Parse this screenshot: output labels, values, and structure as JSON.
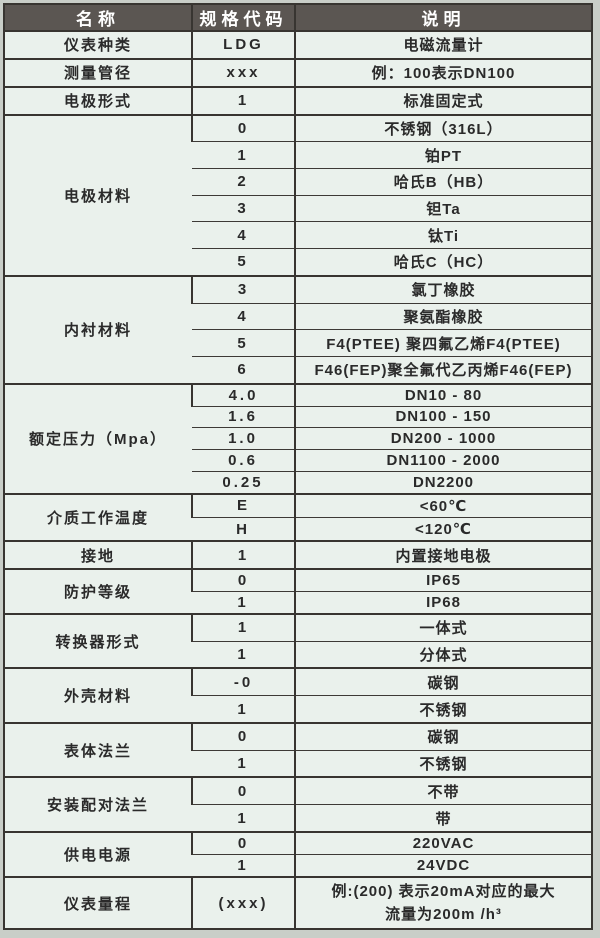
{
  "colors": {
    "page_background": "#c9cec8",
    "table_background": "#eaf1ec",
    "header_background": "#5b5652",
    "header_text": "#ffffff",
    "body_text": "#2a2a2a",
    "border": "#383531"
  },
  "table": {
    "headers": [
      "名称",
      "规格代码",
      "说明"
    ],
    "groups": [
      {
        "name": "仪表种类",
        "rows": [
          {
            "code": "LDG",
            "desc": "电磁流量计"
          }
        ]
      },
      {
        "name": "测量管径",
        "rows": [
          {
            "code": "xxx",
            "desc": "例：100表示DN100"
          }
        ]
      },
      {
        "name": "电极形式",
        "rows": [
          {
            "code": "1",
            "desc": "标准固定式"
          }
        ]
      },
      {
        "name": "电极材料",
        "rows": [
          {
            "code": "0",
            "desc": "不锈钢（316L）"
          },
          {
            "code": "1",
            "desc": "铂PT"
          },
          {
            "code": "2",
            "desc": "哈氏B（HB）"
          },
          {
            "code": "3",
            "desc": "钽Ta"
          },
          {
            "code": "4",
            "desc": "钛Ti"
          },
          {
            "code": "5",
            "desc": "哈氏C（HC）"
          }
        ]
      },
      {
        "name": "内衬材料",
        "rows": [
          {
            "code": "3",
            "desc": "氯丁橡胶"
          },
          {
            "code": "4",
            "desc": "聚氨酯橡胶"
          },
          {
            "code": "5",
            "desc": "F4(PTEE) 聚四氟乙烯F4(PTEE)"
          },
          {
            "code": "6",
            "desc": "F46(FEP)聚全氟代乙丙烯F46(FEP)"
          }
        ]
      },
      {
        "name": "额定压力（Mpa）",
        "rows": [
          {
            "code": "4.0",
            "desc": "DN10 - 80"
          },
          {
            "code": "1.6",
            "desc": "DN100 - 150"
          },
          {
            "code": "1.0",
            "desc": "DN200 - 1000"
          },
          {
            "code": "0.6",
            "desc": "DN1100 - 2000"
          },
          {
            "code": "0.25",
            "desc": "DN2200"
          }
        ]
      },
      {
        "name": "介质工作温度",
        "rows": [
          {
            "code": "E",
            "desc": "<60℃"
          },
          {
            "code": "H",
            "desc": "<120℃"
          }
        ]
      },
      {
        "name": "接地",
        "rows": [
          {
            "code": "1",
            "desc": "内置接地电极"
          }
        ]
      },
      {
        "name": "防护等级",
        "rows": [
          {
            "code": "0",
            "desc": "IP65"
          },
          {
            "code": "1",
            "desc": "IP68"
          }
        ]
      },
      {
        "name": "转换器形式",
        "rows": [
          {
            "code": "1",
            "desc": "一体式"
          },
          {
            "code": "1",
            "desc": "分体式"
          }
        ]
      },
      {
        "name": "外壳材料",
        "rows": [
          {
            "code": "-0",
            "desc": "碳钢"
          },
          {
            "code": "1",
            "desc": "不锈钢"
          }
        ]
      },
      {
        "name": "表体法兰",
        "rows": [
          {
            "code": "0",
            "desc": "碳钢"
          },
          {
            "code": "1",
            "desc": "不锈钢"
          }
        ]
      },
      {
        "name": "安装配对法兰",
        "rows": [
          {
            "code": "0",
            "desc": "不带"
          },
          {
            "code": "1",
            "desc": "带"
          }
        ]
      },
      {
        "name": "供电电源",
        "rows": [
          {
            "code": "0",
            "desc": "220VAC"
          },
          {
            "code": "1",
            "desc": "24VDC"
          }
        ]
      },
      {
        "name": "仪表量程",
        "rows": [
          {
            "code": "(xxx)",
            "desc": "例:(200) 表示20mA对应的最大",
            "desc2": "流量为200m /h³",
            "tall": true
          }
        ]
      }
    ]
  }
}
